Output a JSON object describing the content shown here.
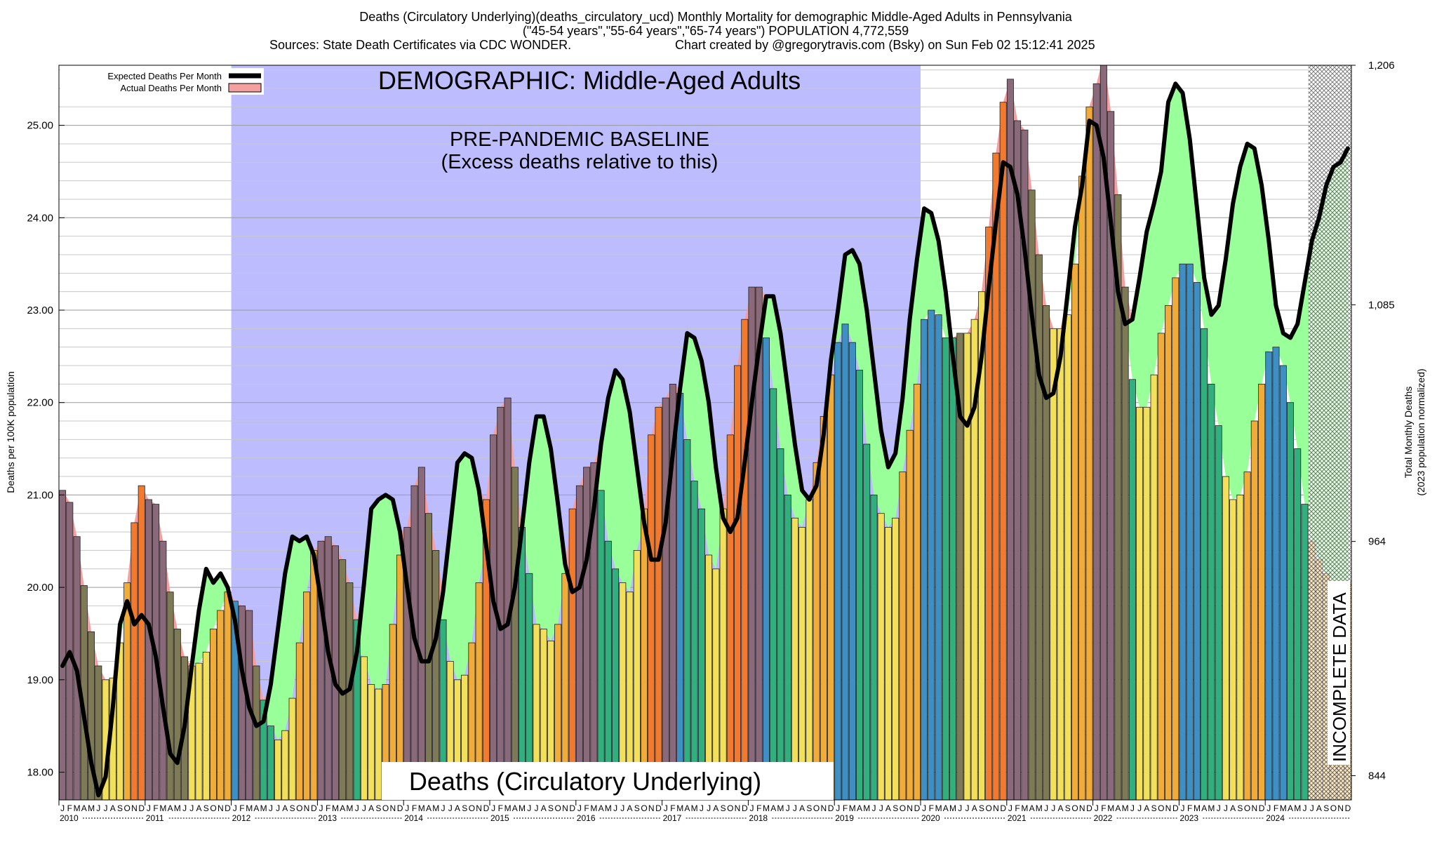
{
  "header": {
    "line1": "Deaths (Circulatory Underlying)(deaths_circulatory_ucd) Monthly Mortality for demographic Middle-Aged Adults in Pennsylvania",
    "line2": "(\"45-54 years\",\"55-64 years\",\"65-74 years\") POPULATION 4,772,559",
    "line3a": "Sources: State Death Certificates via CDC WONDER.",
    "line3b": "Chart created by @gregorytravis.com (Bsky) on Sun Feb 02 15:12:41 2025"
  },
  "annotations": {
    "demographic": "DEMOGRAPHIC: Middle-Aged Adults",
    "baseline1": "PRE-PANDEMIC BASELINE",
    "baseline2": "(Excess deaths relative to this)",
    "bottom_title": "Deaths (Circulatory Underlying)",
    "incomplete": "INCOMPLETE DATA"
  },
  "colors": {
    "baseline_region": "#bcbcff",
    "excess_fill": "#99ff99",
    "actual_fill": "#f4a0a0",
    "expected_line": "#000000",
    "hatch": "#555555"
  },
  "chart_data": {
    "type": "bar",
    "title": "Deaths (Circulatory Underlying)(deaths_circulatory_ucd) Monthly Mortality for demographic Middle-Aged Adults in Pennsylvania",
    "ylabel": "Deaths per 100K population",
    "y2label_line1": "Total Monthly Deaths",
    "y2label_line2": "(2023 population normalized)",
    "ylim": [
      17.7,
      25.65
    ],
    "yticks": [
      "18.00",
      "19.00",
      "20.00",
      "21.00",
      "22.00",
      "23.00",
      "24.00",
      "25.00"
    ],
    "y2ticks": [
      {
        "at": 17.962,
        "label": "844"
      },
      {
        "at": 20.497,
        "label": "964"
      },
      {
        "at": 23.058,
        "label": "1,085"
      },
      {
        "at": 25.65,
        "label": "1,206"
      }
    ],
    "legend": {
      "placement": "top-left",
      "entries": [
        "Expected Deaths Per Month",
        "Actual Deaths Per Month"
      ]
    },
    "baseline_range": [
      "2012-01",
      "2019-12"
    ],
    "incomplete_range": [
      "2024-07",
      "2024-12"
    ],
    "month_letters": [
      "J",
      "F",
      "M",
      "A",
      "M",
      "J",
      "J",
      "A",
      "S",
      "O",
      "N",
      "D"
    ],
    "years": [
      "2010",
      "2011",
      "2012",
      "2013",
      "2014",
      "2015",
      "2016",
      "2017",
      "2018",
      "2019",
      "2020",
      "2021",
      "2022",
      "2023",
      "2024"
    ],
    "actual": [
      21.05,
      20.92,
      20.55,
      20.02,
      19.52,
      19.15,
      19.0,
      19.02,
      19.4,
      20.05,
      20.7,
      21.1,
      20.95,
      20.9,
      20.5,
      19.95,
      19.55,
      19.25,
      19.15,
      19.18,
      19.3,
      19.55,
      19.75,
      19.95,
      19.85,
      19.8,
      19.75,
      19.15,
      18.78,
      18.5,
      18.35,
      18.45,
      18.8,
      19.4,
      19.95,
      20.4,
      20.5,
      20.55,
      20.45,
      20.3,
      20.05,
      19.65,
      19.25,
      18.95,
      18.9,
      18.95,
      19.6,
      20.35,
      20.65,
      21.1,
      21.3,
      20.8,
      20.4,
      19.65,
      19.2,
      19.0,
      19.05,
      19.4,
      20.05,
      20.95,
      21.65,
      21.95,
      22.05,
      21.3,
      20.65,
      20.15,
      19.6,
      19.55,
      19.42,
      19.6,
      20.15,
      20.85,
      21.1,
      21.3,
      21.35,
      21.05,
      20.5,
      20.2,
      20.05,
      19.95,
      20.4,
      20.85,
      21.65,
      21.95,
      22.05,
      22.2,
      22.1,
      21.6,
      21.15,
      20.85,
      20.35,
      20.2,
      20.85,
      21.65,
      22.4,
      22.9,
      23.25,
      23.25,
      22.7,
      22.15,
      21.5,
      21.0,
      20.75,
      20.65,
      20.95,
      21.35,
      21.85,
      22.3,
      22.65,
      22.85,
      22.65,
      22.35,
      21.55,
      21.0,
      20.8,
      20.65,
      20.75,
      21.25,
      21.7,
      22.2,
      22.9,
      23.0,
      22.95,
      22.7,
      22.7,
      22.75,
      22.75,
      22.9,
      23.2,
      23.9,
      24.7,
      25.25,
      25.5,
      25.05,
      24.95,
      24.3,
      23.6,
      23.05,
      22.8,
      22.8,
      22.95,
      23.5,
      24.45,
      25.2,
      25.45,
      25.75,
      25.15,
      24.25,
      23.25,
      22.25,
      21.95,
      21.95,
      22.3,
      22.75,
      23.05,
      23.35,
      23.5,
      23.5,
      23.3,
      22.8,
      22.2,
      21.75,
      21.2,
      20.95,
      21.0,
      21.25,
      21.8,
      22.2,
      22.55,
      22.6,
      22.4,
      22.0,
      21.5,
      20.9,
      20.5,
      20.3,
      20.15,
      20.05,
      20.0,
      20.05
    ],
    "expected": [
      19.15,
      19.3,
      19.1,
      18.6,
      18.1,
      17.75,
      17.95,
      18.7,
      19.6,
      19.85,
      19.6,
      19.7,
      19.6,
      19.25,
      18.7,
      18.2,
      18.1,
      18.5,
      19.15,
      19.75,
      20.2,
      20.05,
      20.15,
      20.0,
      19.65,
      19.1,
      18.7,
      18.5,
      18.55,
      18.95,
      19.55,
      20.15,
      20.55,
      20.5,
      20.55,
      20.35,
      19.85,
      19.3,
      18.95,
      18.85,
      18.9,
      19.3,
      20.05,
      20.85,
      20.95,
      21.0,
      20.95,
      20.6,
      20.0,
      19.45,
      19.2,
      19.2,
      19.45,
      19.95,
      20.65,
      21.35,
      21.45,
      21.4,
      21.05,
      20.45,
      19.85,
      19.55,
      19.6,
      20.0,
      20.65,
      21.35,
      21.85,
      21.85,
      21.5,
      20.9,
      20.25,
      19.95,
      20.0,
      20.3,
      20.85,
      21.55,
      22.05,
      22.35,
      22.25,
      21.9,
      21.3,
      20.7,
      20.3,
      20.3,
      20.7,
      21.45,
      22.15,
      22.75,
      22.7,
      22.45,
      22.0,
      21.3,
      20.75,
      20.6,
      20.75,
      21.35,
      22.0,
      22.6,
      23.15,
      23.15,
      22.75,
      22.15,
      21.55,
      21.05,
      20.95,
      21.1,
      21.65,
      22.45,
      23.0,
      23.6,
      23.65,
      23.5,
      23.0,
      22.35,
      21.7,
      21.3,
      21.45,
      22.05,
      22.9,
      23.55,
      24.1,
      24.05,
      23.75,
      23.2,
      22.5,
      21.85,
      21.75,
      21.95,
      22.5,
      23.25,
      23.95,
      24.6,
      24.55,
      24.25,
      23.65,
      22.95,
      22.3,
      22.05,
      22.1,
      22.5,
      23.2,
      23.9,
      24.35,
      25.05,
      25.0,
      24.65,
      23.95,
      23.2,
      22.85,
      22.9,
      23.35,
      23.85,
      24.15,
      24.5,
      25.25,
      25.45,
      25.35,
      24.85,
      24.1,
      23.35,
      22.95,
      23.05,
      23.55,
      24.15,
      24.55,
      24.8,
      24.75,
      24.35,
      23.75,
      23.05,
      22.75,
      22.7,
      22.85,
      23.3,
      23.75,
      24.0,
      24.35,
      24.55,
      24.6,
      24.75
    ]
  }
}
